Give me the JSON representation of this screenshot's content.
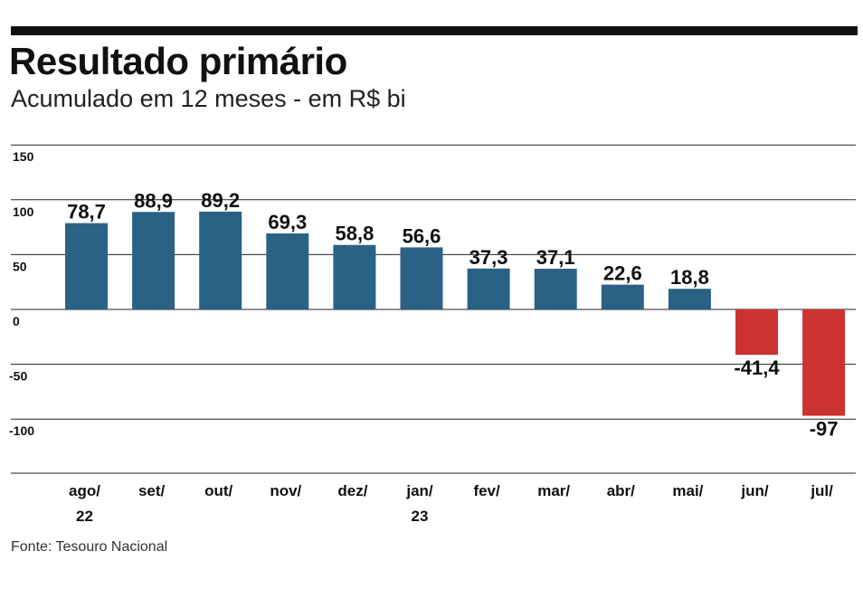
{
  "chart_data": {
    "type": "bar",
    "title": "Resultado primário",
    "subtitle": "Acumulado em 12 meses - em R$ bi",
    "source": "Fonte: Tesouro Nacional",
    "categories": [
      "ago/\n22",
      "set/",
      "out/",
      "nov/",
      "dez/",
      "jan/\n23",
      "fev/",
      "mar/",
      "abr/",
      "mai/",
      "jun/",
      "jul/"
    ],
    "values": [
      78.7,
      88.9,
      89.2,
      69.3,
      58.8,
      56.6,
      37.3,
      37.1,
      22.6,
      18.8,
      -41.4,
      -97
    ],
    "data_labels": [
      "78,7",
      "88,9",
      "89,2",
      "69,3",
      "58,8",
      "56,6",
      "37,3",
      "37,1",
      "22,6",
      "18,8",
      "-41,4",
      "-97"
    ],
    "yticks": [
      150,
      100,
      50,
      0,
      -50,
      -100
    ],
    "ylim": [
      -150,
      150
    ],
    "grid": true,
    "colors": {
      "positive": "#2a6285",
      "negative": "#cc3330",
      "grid": "#222222"
    }
  }
}
